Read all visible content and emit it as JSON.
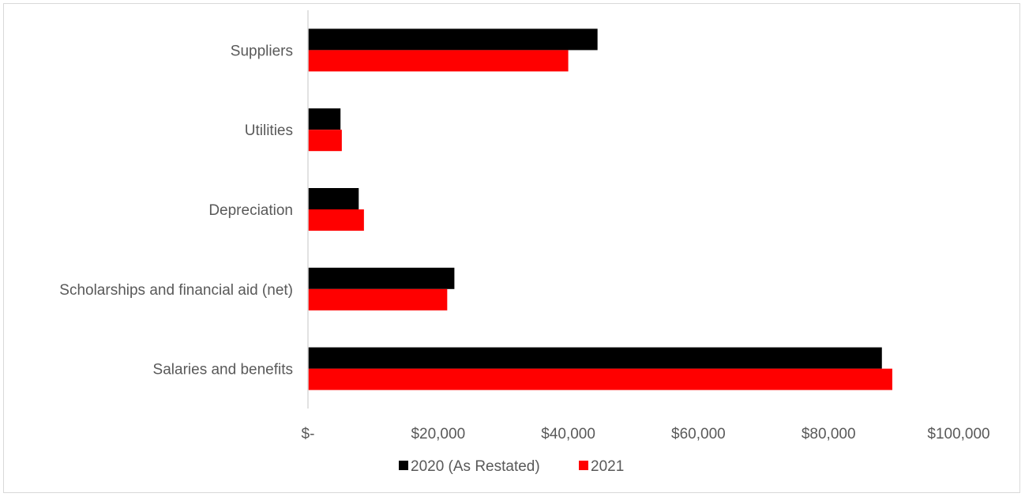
{
  "chart_data": {
    "type": "bar",
    "orientation": "horizontal",
    "title": "",
    "xlabel": "",
    "ylabel": "",
    "categories": [
      "Suppliers",
      "Utilities",
      "Depreciation",
      "Scholarships and financial aid (net)",
      "Salaries and benefits"
    ],
    "series": [
      {
        "name": "2020 (As Restated)",
        "color": "#000000",
        "values": [
          44500,
          5000,
          7800,
          22500,
          88200
        ]
      },
      {
        "name": "2021",
        "color": "#ff0000",
        "values": [
          40000,
          5200,
          8600,
          21400,
          89800
        ]
      }
    ],
    "xlim": [
      0,
      100000
    ],
    "x_ticks": [
      0,
      20000,
      40000,
      60000,
      80000,
      100000
    ],
    "x_tick_labels": [
      "$-",
      "$20,000",
      "$40,000",
      "$60,000",
      "$80,000",
      "$100,000"
    ],
    "grid": false,
    "legend_position": "bottom"
  }
}
